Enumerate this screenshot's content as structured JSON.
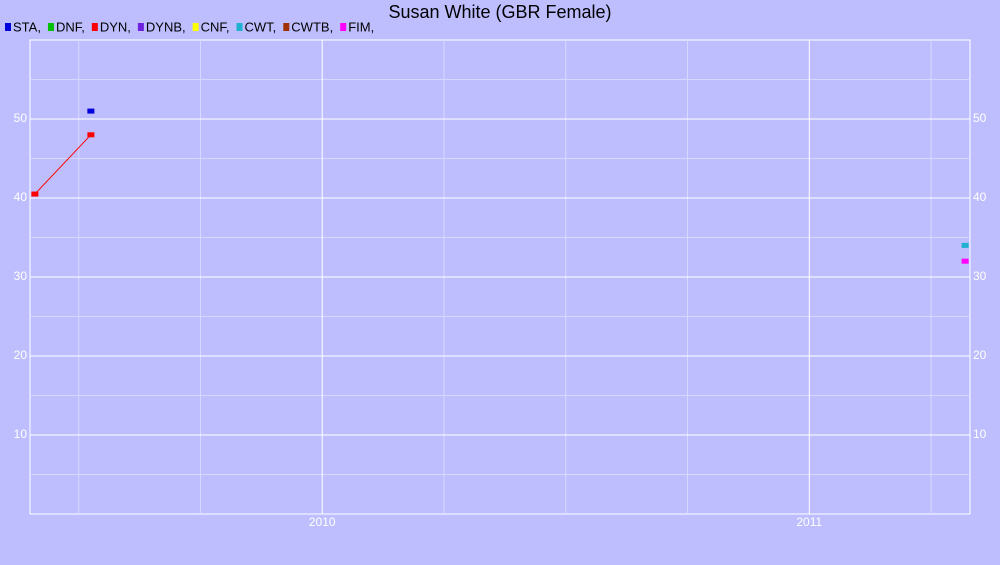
{
  "chart_data": {
    "type": "line",
    "title": "Susan White (GBR Female)",
    "series": [
      {
        "name": "STA,",
        "color": "#0000dd",
        "x": [
          2009.525
        ],
        "values": [
          51
        ]
      },
      {
        "name": "DNF,",
        "color": "#00c000",
        "x": [],
        "values": []
      },
      {
        "name": "DYN,",
        "color": "#ff0000",
        "x": [
          2009.41,
          2009.525
        ],
        "values": [
          40.5,
          48
        ]
      },
      {
        "name": "DYNB,",
        "color": "#7020e0",
        "x": [],
        "values": []
      },
      {
        "name": "CNF,",
        "color": "#ffff00",
        "x": [],
        "values": []
      },
      {
        "name": "CWT,",
        "color": "#20b0d0",
        "x": [
          2011.32
        ],
        "values": [
          34
        ]
      },
      {
        "name": "CWTB,",
        "color": "#a03000",
        "x": [],
        "values": []
      },
      {
        "name": "FIM,",
        "color": "#ff00ff",
        "x": [
          2011.32
        ],
        "values": [
          32
        ]
      }
    ],
    "xlim": [
      2009.4,
      2011.33
    ],
    "xticks": [
      2010,
      2011
    ],
    "ylim": [
      0,
      60
    ],
    "yticks": [
      10,
      20,
      30,
      40,
      50
    ],
    "grid": true,
    "legend": "top-left"
  }
}
